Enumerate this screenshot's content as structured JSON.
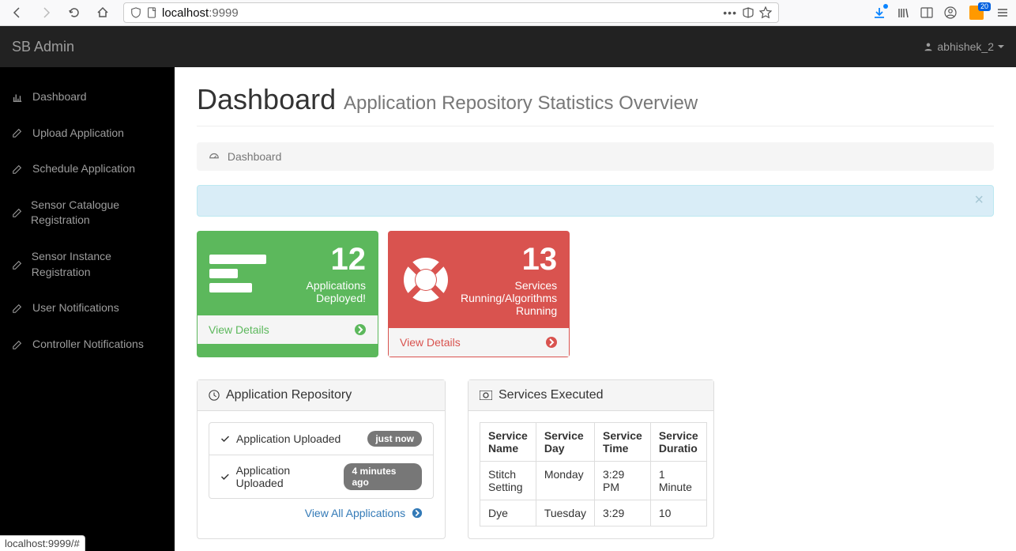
{
  "browser": {
    "url_host": "localhost",
    "url_port": ":9999",
    "badge_count": "20",
    "status_text": "localhost:9999/#"
  },
  "navbar": {
    "brand": "SB Admin",
    "user": "abhishek_2"
  },
  "sidebar": {
    "items": [
      {
        "label": "Dashboard"
      },
      {
        "label": "Upload Application"
      },
      {
        "label": "Schedule Application"
      },
      {
        "label": "Sensor Catalogue Registration"
      },
      {
        "label": "Sensor Instance Registration"
      },
      {
        "label": "User Notifications"
      },
      {
        "label": "Controller Notifications"
      }
    ]
  },
  "page": {
    "title": "Dashboard",
    "subtitle": "Application Repository Statistics Overview",
    "breadcrumb": "Dashboard"
  },
  "stats": {
    "green": {
      "num": "12",
      "label": "Applications Deployed!",
      "view": "View Details",
      "bg": "#5cb85c"
    },
    "red": {
      "num": "13",
      "label": "Services Running/Algorithms Running",
      "view": "View Details",
      "bg": "#d9534f"
    }
  },
  "repo_panel": {
    "title": "Application Repository",
    "items": [
      {
        "text": "Application Uploaded",
        "badge": "just now"
      },
      {
        "text": "Application Uploaded",
        "badge": "4 minutes ago"
      }
    ],
    "view_all": "View All Applications"
  },
  "services_panel": {
    "title": "Services Executed",
    "columns": [
      "Service Name",
      "Service Day",
      "Service Time",
      "Service Duratio"
    ],
    "rows": [
      [
        "Stitch Setting",
        "Monday",
        "3:29 PM",
        "1 Minute"
      ],
      [
        "Dye",
        "Tuesday",
        "3:29",
        "10"
      ]
    ]
  }
}
